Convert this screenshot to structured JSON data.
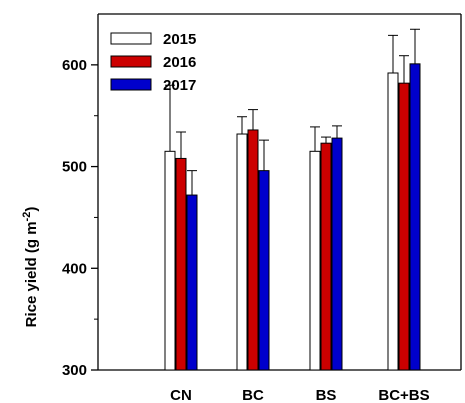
{
  "chart_data": {
    "type": "bar",
    "categories": [
      "CN",
      "BC",
      "BS",
      "BC+BS"
    ],
    "series": [
      {
        "name": "2015",
        "color": "#ffffff",
        "values": [
          515,
          532,
          515,
          592
        ],
        "errors": [
          65,
          17,
          24,
          37
        ]
      },
      {
        "name": "2016",
        "color": "#cc0000",
        "values": [
          508,
          536,
          523,
          582
        ],
        "errors": [
          26,
          20,
          6,
          27
        ]
      },
      {
        "name": "2017",
        "color": "#0000cc",
        "values": [
          472,
          496,
          528,
          601
        ],
        "errors": [
          24,
          30,
          12,
          34
        ]
      }
    ],
    "title": "",
    "xlabel": "",
    "ylabel_main": "Rice yield (g m",
    "ylabel_sup": "-2",
    "ylabel_close": ")",
    "ylim": [
      300,
      650
    ],
    "yticks": [
      300,
      400,
      500,
      600
    ],
    "grid": false,
    "legend_position": "top-left",
    "error_bars": "upper"
  }
}
